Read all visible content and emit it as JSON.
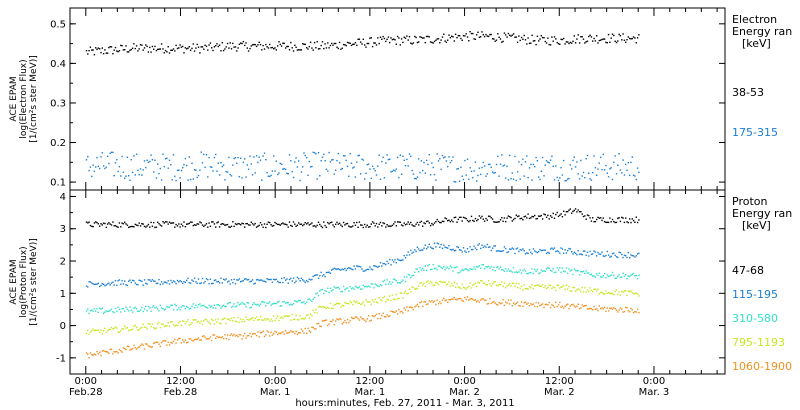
{
  "chart_data": [
    {
      "type": "scatter",
      "title": "",
      "ylabel": [
        "ACE EPAM",
        "log(Electron Flux)",
        "[1/(cm²s ster MeV)]"
      ],
      "ylim": [
        0.08,
        0.54
      ],
      "yticks": [
        0.1,
        0.2,
        0.3,
        0.4,
        0.5
      ],
      "ytick_labels": [
        "0.1",
        "0.2",
        "0.3",
        "0.4",
        "0.5"
      ],
      "legend_title": [
        "Electron",
        "Energy ran",
        "[keV]"
      ],
      "series": [
        {
          "name": "38-53",
          "color": "#000000",
          "x": [
            0,
            3,
            6,
            9,
            12,
            15,
            18,
            21,
            24,
            27,
            30,
            33,
            36,
            39,
            42,
            45,
            48,
            51,
            54,
            57,
            60,
            63,
            66,
            70
          ],
          "y": [
            0.43,
            0.435,
            0.44,
            0.44,
            0.44,
            0.44,
            0.445,
            0.445,
            0.445,
            0.445,
            0.445,
            0.45,
            0.455,
            0.46,
            0.46,
            0.465,
            0.47,
            0.47,
            0.465,
            0.46,
            0.46,
            0.465,
            0.465,
            0.465
          ]
        },
        {
          "name": "175-315",
          "color": "#1a7fd4",
          "x": [
            0,
            3,
            6,
            9,
            12,
            15,
            18,
            21,
            24,
            27,
            30,
            33,
            36,
            39,
            42,
            45,
            48,
            51,
            54,
            57,
            60,
            63,
            66,
            70
          ],
          "y": [
            0.14,
            0.145,
            0.14,
            0.14,
            0.14,
            0.145,
            0.14,
            0.14,
            0.14,
            0.14,
            0.145,
            0.14,
            0.14,
            0.14,
            0.14,
            0.14,
            0.135,
            0.14,
            0.14,
            0.14,
            0.14,
            0.14,
            0.14,
            0.14
          ]
        }
      ]
    },
    {
      "type": "scatter",
      "title": "",
      "ylabel": [
        "ACE EPAM",
        "log(Proton Flux)",
        "[1/(cm²s ster MeV)]"
      ],
      "ylim": [
        -1.5,
        4.2
      ],
      "yticks": [
        -1,
        0,
        1,
        2,
        3,
        4
      ],
      "ytick_labels": [
        "-1",
        "0",
        "1",
        "2",
        "3",
        "4"
      ],
      "legend_title": [
        "Proton",
        "Energy ran",
        "[keV]"
      ],
      "xlabel": "hours:minutes, Feb. 27, 2011 - Mar. 3, 2011",
      "x_ticks": [
        0,
        12,
        24,
        36,
        48,
        60,
        72
      ],
      "x_tick_labels": [
        [
          "0:00",
          "Feb.28"
        ],
        [
          "12:00",
          "Feb.28"
        ],
        [
          "0:00",
          "Mar. 1"
        ],
        [
          "12:00",
          "Mar. 1"
        ],
        [
          "0:00",
          "Mar. 2"
        ],
        [
          "12:00",
          "Mar. 2"
        ],
        [
          "0:00",
          "Mar. 3"
        ]
      ],
      "series": [
        {
          "name": "47-68",
          "color": "#000000",
          "x": [
            0,
            4,
            8,
            12,
            16,
            20,
            24,
            28,
            32,
            36,
            40,
            44,
            46,
            48,
            50,
            52,
            54,
            56,
            58,
            60,
            62,
            64,
            66,
            70
          ],
          "y": [
            3.15,
            3.15,
            3.15,
            3.15,
            3.15,
            3.15,
            3.15,
            3.15,
            3.15,
            3.15,
            3.15,
            3.2,
            3.3,
            3.3,
            3.35,
            3.3,
            3.35,
            3.4,
            3.4,
            3.45,
            3.6,
            3.3,
            3.3,
            3.3
          ]
        },
        {
          "name": "115-195",
          "color": "#1a7fd4",
          "x": [
            0,
            4,
            8,
            12,
            16,
            20,
            24,
            28,
            30,
            32,
            34,
            36,
            38,
            40,
            42,
            44,
            46,
            48,
            50,
            52,
            56,
            60,
            64,
            70
          ],
          "y": [
            1.3,
            1.35,
            1.35,
            1.4,
            1.4,
            1.4,
            1.4,
            1.45,
            1.6,
            1.75,
            1.8,
            1.8,
            1.95,
            2.1,
            2.4,
            2.5,
            2.45,
            2.35,
            2.5,
            2.4,
            2.3,
            2.35,
            2.25,
            2.2
          ]
        },
        {
          "name": "310-580",
          "color": "#30e0c8",
          "x": [
            0,
            4,
            8,
            12,
            16,
            20,
            24,
            28,
            30,
            32,
            34,
            36,
            38,
            40,
            42,
            44,
            46,
            48,
            50,
            52,
            56,
            60,
            64,
            70
          ],
          "y": [
            0.45,
            0.5,
            0.55,
            0.6,
            0.65,
            0.65,
            0.7,
            0.75,
            1.1,
            1.15,
            1.2,
            1.25,
            1.35,
            1.4,
            1.75,
            1.85,
            1.8,
            1.7,
            1.85,
            1.8,
            1.7,
            1.75,
            1.6,
            1.55
          ]
        },
        {
          "name": "795-1193",
          "color": "#c8e61e",
          "x": [
            0,
            4,
            8,
            12,
            16,
            20,
            24,
            28,
            30,
            32,
            34,
            36,
            38,
            40,
            42,
            44,
            46,
            48,
            50,
            52,
            56,
            60,
            64,
            70
          ],
          "y": [
            -0.2,
            -0.1,
            0.0,
            0.1,
            0.15,
            0.2,
            0.25,
            0.3,
            0.6,
            0.65,
            0.7,
            0.75,
            0.85,
            0.95,
            1.25,
            1.35,
            1.3,
            1.2,
            1.35,
            1.3,
            1.2,
            1.2,
            1.1,
            1.0
          ]
        },
        {
          "name": "1060-1900",
          "color": "#f0901e",
          "x": [
            0,
            4,
            8,
            12,
            16,
            20,
            24,
            28,
            30,
            32,
            34,
            36,
            38,
            40,
            42,
            44,
            46,
            48,
            50,
            52,
            56,
            60,
            64,
            70
          ],
          "y": [
            -0.9,
            -0.75,
            -0.6,
            -0.45,
            -0.35,
            -0.3,
            -0.2,
            -0.15,
            0.1,
            0.15,
            0.2,
            0.25,
            0.35,
            0.45,
            0.65,
            0.75,
            0.8,
            0.85,
            0.8,
            0.75,
            0.7,
            0.65,
            0.55,
            0.5
          ]
        }
      ]
    }
  ]
}
